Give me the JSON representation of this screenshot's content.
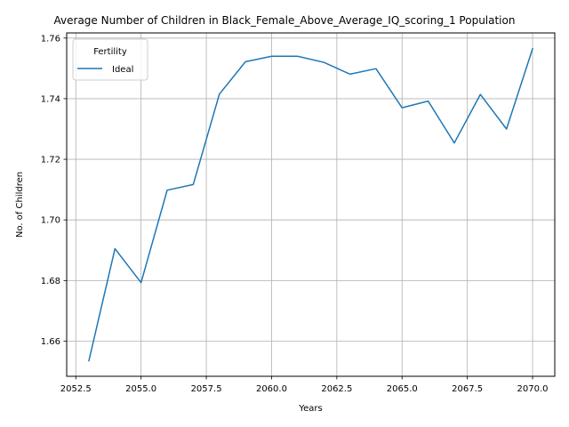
{
  "chart_data": {
    "type": "line",
    "title": "Average Number of Children in Black_Female_Above_Average_IQ_scoring_1 Population",
    "xlabel": "Years",
    "ylabel": "No. of Children",
    "xlim": [
      2052.15,
      2070.85
    ],
    "ylim": [
      1.6484,
      1.7617
    ],
    "x_ticks": [
      2052.5,
      2055.0,
      2057.5,
      2060.0,
      2062.5,
      2065.0,
      2067.5,
      2070.0
    ],
    "x_tick_labels": [
      "2052.5",
      "2055.0",
      "2057.5",
      "2060.0",
      "2062.5",
      "2065.0",
      "2067.5",
      "2070.0"
    ],
    "y_ticks": [
      1.66,
      1.68,
      1.7,
      1.72,
      1.74,
      1.76
    ],
    "y_tick_labels": [
      "1.66",
      "1.68",
      "1.70",
      "1.72",
      "1.74",
      "1.76"
    ],
    "grid": true,
    "legend": {
      "title": "Fertility",
      "placement": "top-left"
    },
    "series": [
      {
        "name": "Ideal",
        "color": "#1f77b4",
        "x": [
          2053,
          2054,
          2055,
          2056,
          2057,
          2058,
          2059,
          2060,
          2061,
          2062,
          2063,
          2064,
          2065,
          2066,
          2067,
          2068,
          2069,
          2070
        ],
        "y": [
          1.6535,
          1.6905,
          1.6793,
          1.7098,
          1.7117,
          1.7415,
          1.7522,
          1.754,
          1.754,
          1.752,
          1.7481,
          1.7499,
          1.737,
          1.7392,
          1.7254,
          1.7414,
          1.73,
          1.7565
        ]
      }
    ]
  }
}
